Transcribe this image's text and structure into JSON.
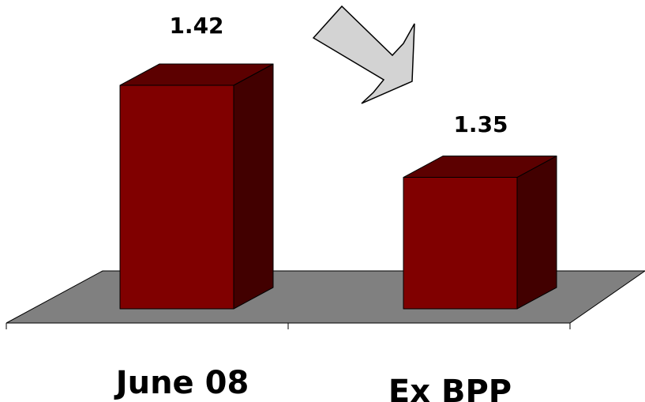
{
  "colors": {
    "bar_front": "#800000",
    "bar_top": "#5c0000",
    "bar_side": "#420000",
    "floor": "#808080",
    "arrow_fill": "#d3d3d3"
  },
  "icons": {
    "trend_arrow": "down-right-arrow"
  },
  "chart_data": {
    "type": "bar",
    "style": "3d",
    "categories": [
      "June 08",
      "Ex BPP"
    ],
    "values": [
      1.42,
      1.35
    ],
    "data_labels": [
      "1.42",
      "1.35"
    ],
    "title": "",
    "xlabel": "",
    "ylabel": "",
    "ylim": [
      1.25,
      1.45
    ],
    "grid": false,
    "legend": "none"
  }
}
